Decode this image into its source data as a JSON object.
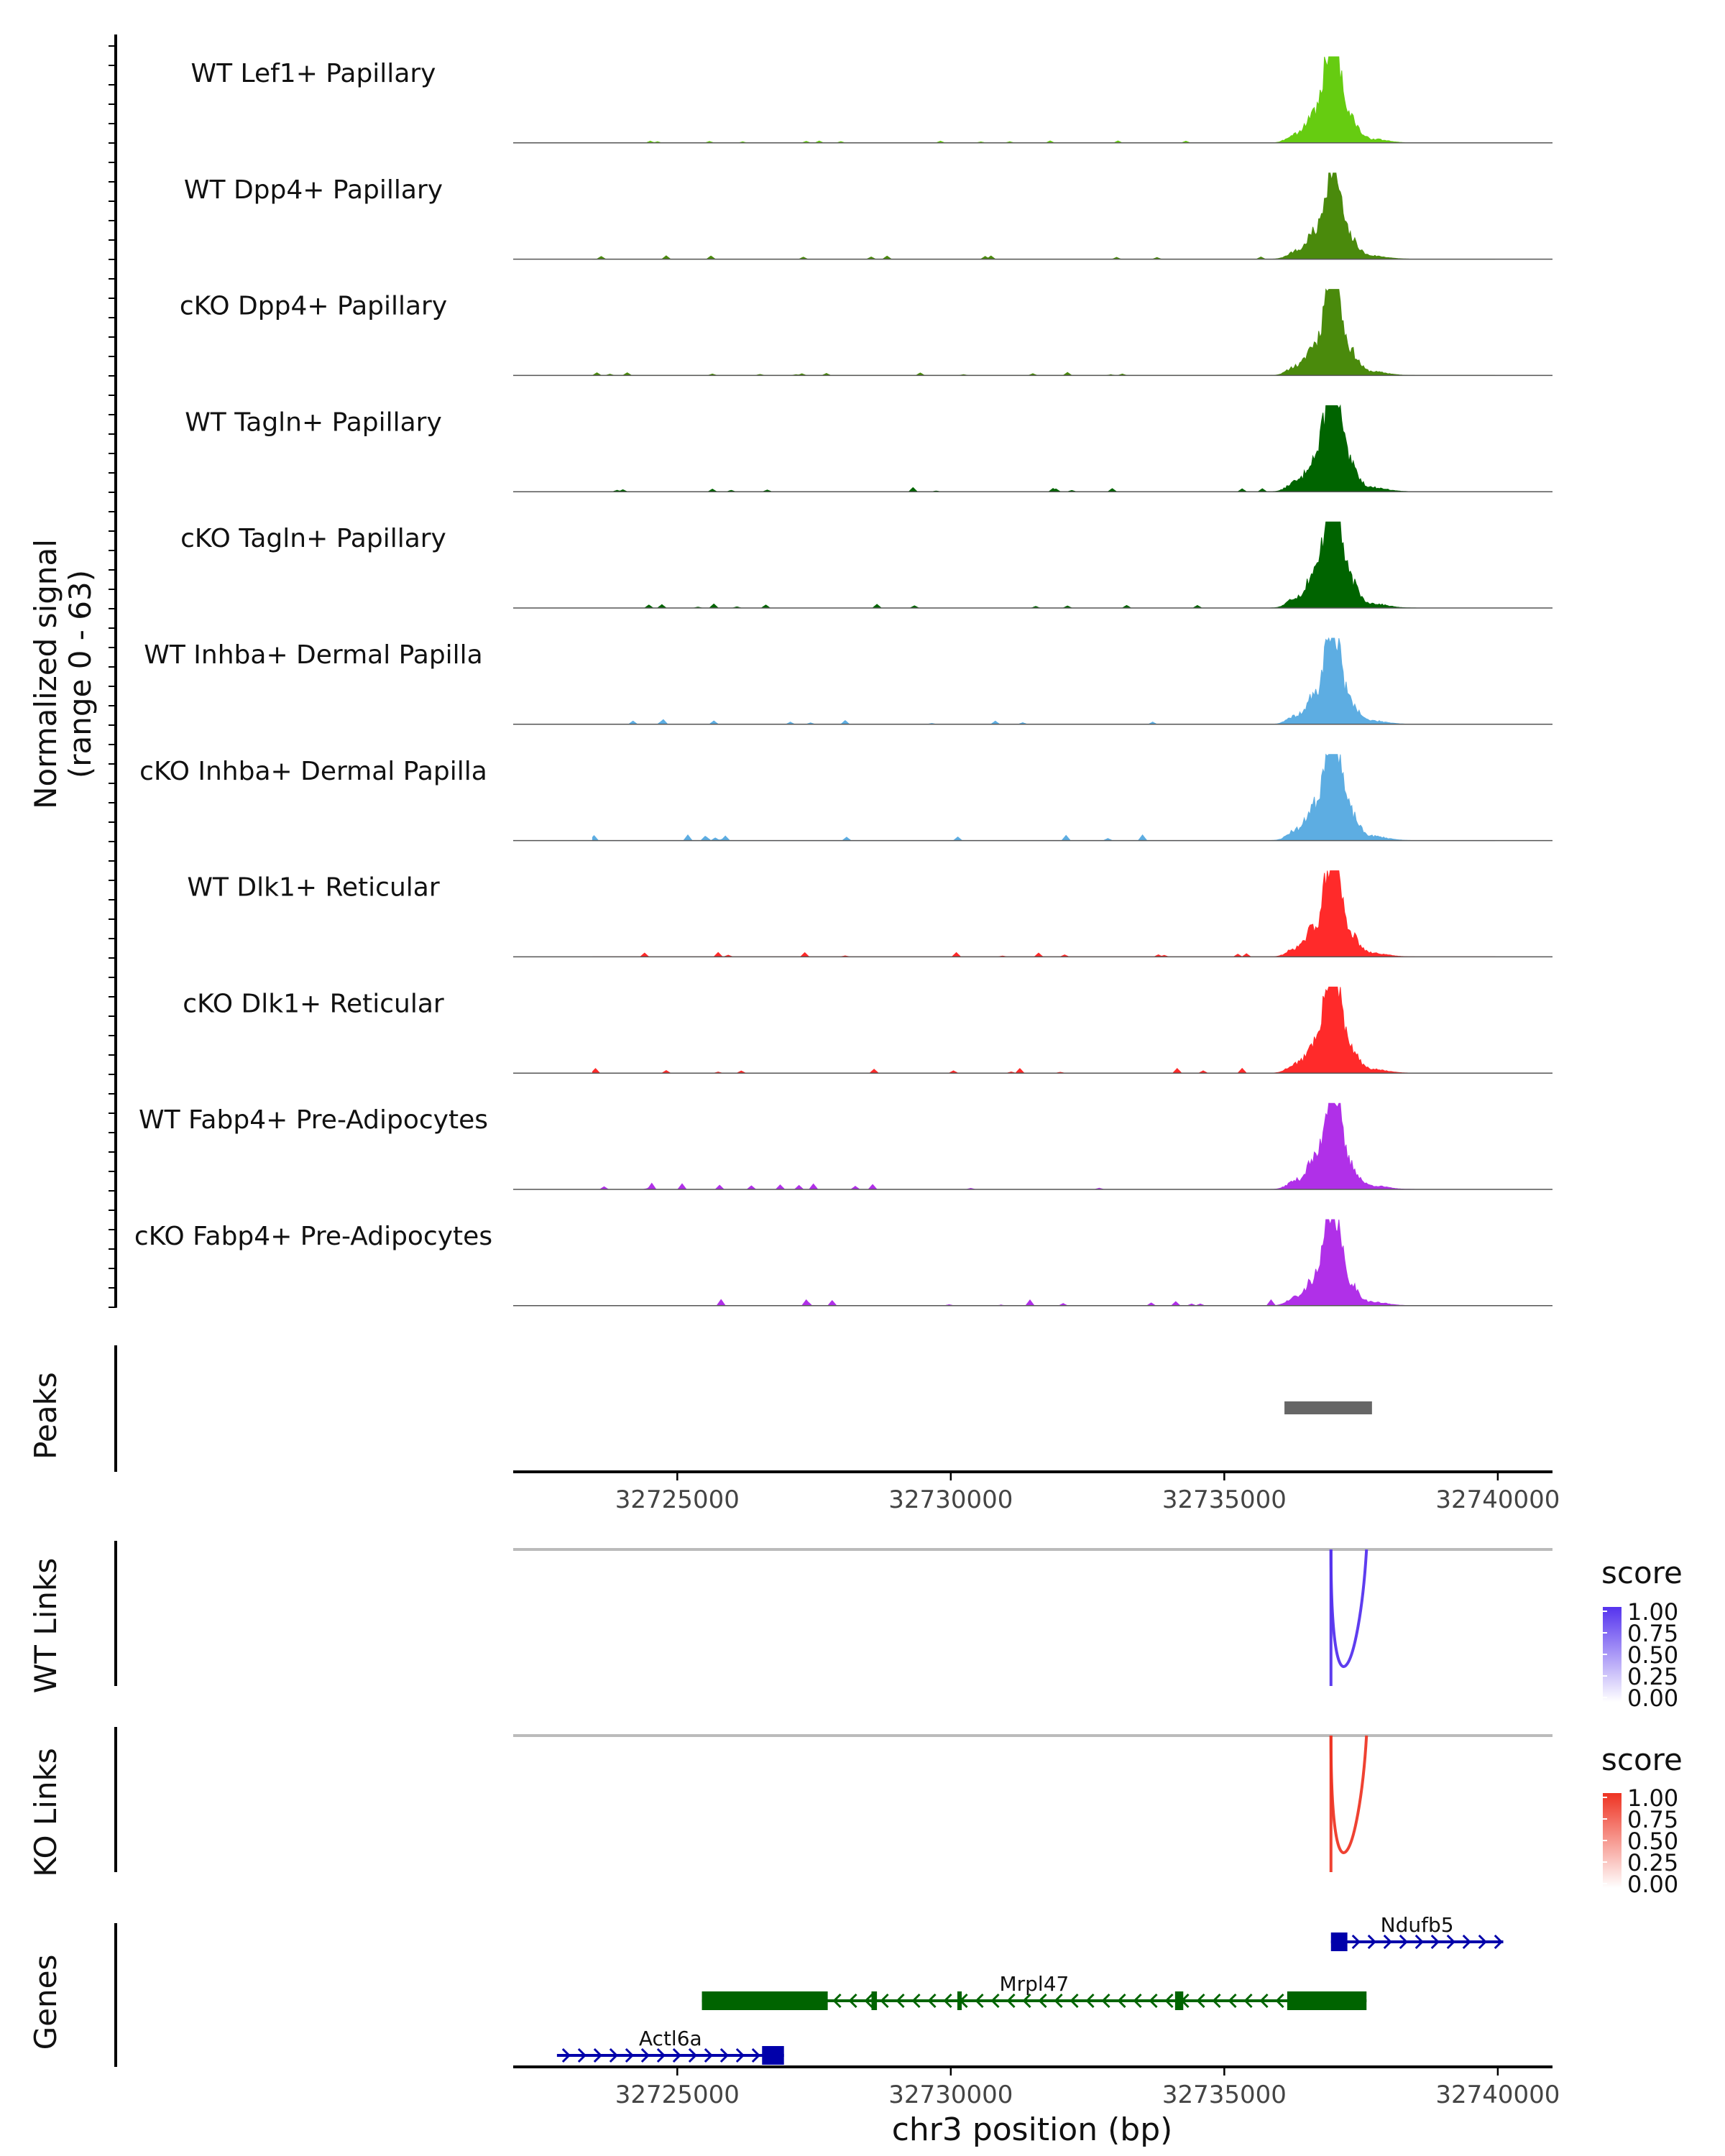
{
  "chart_data": {
    "type": "area",
    "region": "chr3",
    "xlabel": "chr3 position (bp)",
    "xlim": [
      32722000,
      32741000
    ],
    "x_ticks": [
      32725000,
      32730000,
      32735000,
      32740000
    ],
    "coverage": {
      "ylabel_line1": "Normalized signal",
      "ylabel_line2": "(range 0 - 63)",
      "ylim": [
        0,
        63
      ],
      "tracks": [
        {
          "name": "WT Lef1+ Papillary",
          "color": "#66CC11",
          "peak": 55,
          "noise": 1,
          "seed": 3
        },
        {
          "name": "WT Dpp4+ Papillary",
          "color": "#4A8A0C",
          "peak": 47,
          "noise": 2,
          "seed": 7
        },
        {
          "name": "cKO Dpp4+ Papillary",
          "color": "#4A8A0C",
          "peak": 55,
          "noise": 2,
          "seed": 11
        },
        {
          "name": "WT Tagln+ Papillary",
          "color": "#006400",
          "peak": 60,
          "noise": 3,
          "seed": 13
        },
        {
          "name": "cKO Tagln+ Papillary",
          "color": "#006400",
          "peak": 63,
          "noise": 3,
          "seed": 17
        },
        {
          "name": "WT Inhba+ Dermal Papilla",
          "color": "#5DADE2",
          "peak": 50,
          "noise": 3,
          "seed": 19
        },
        {
          "name": "cKO Inhba+ Dermal Papilla",
          "color": "#5DADE2",
          "peak": 63,
          "noise": 4,
          "seed": 23
        },
        {
          "name": "WT Dlk1+ Reticular",
          "color": "#FF2A2A",
          "peak": 53,
          "noise": 3,
          "seed": 29
        },
        {
          "name": "cKO Dlk1+ Reticular",
          "color": "#FF2A2A",
          "peak": 55,
          "noise": 3,
          "seed": 31
        },
        {
          "name": "WT Fabp4+ Pre-Adipocytes",
          "color": "#B030E8",
          "peak": 53,
          "noise": 4,
          "seed": 37
        },
        {
          "name": "cKO Fabp4+ Pre-Adipocytes",
          "color": "#B030E8",
          "peak": 50,
          "noise": 4,
          "seed": 41
        }
      ]
    },
    "peaks": {
      "label": "Peaks",
      "color": "#666666",
      "items": [
        {
          "start": 32736100,
          "end": 32737700
        }
      ]
    },
    "links": [
      {
        "label": "WT Links",
        "legend_title": "score",
        "color_high": "#5533EE",
        "legend_ticks": [
          "1.00",
          "0.75",
          "0.50",
          "0.25",
          "0.00"
        ],
        "arcs": [
          {
            "start": 32736950,
            "end": 32737600,
            "score": 0.9
          }
        ]
      },
      {
        "label": "KO Links",
        "legend_title": "score",
        "color_high": "#EE3322",
        "legend_ticks": [
          "1.00",
          "0.75",
          "0.50",
          "0.25",
          "0.00"
        ],
        "arcs": [
          {
            "start": 32736950,
            "end": 32737600,
            "score": 0.85
          }
        ]
      }
    ],
    "genes": {
      "label": "Genes",
      "items": [
        {
          "name": "Ndufb5",
          "strand": "+",
          "color": "#0000AA",
          "start": 32736950,
          "end": 32740100,
          "exons": [
            [
              32736950,
              32737250
            ]
          ],
          "row": 0
        },
        {
          "name": "Mrpl47",
          "strand": "-",
          "color": "#006400",
          "start": 32725450,
          "end": 32737600,
          "exons": [
            [
              32725450,
              32727750
            ],
            [
              32728550,
              32728650
            ],
            [
              32730120,
              32730200
            ],
            [
              32734100,
              32734250
            ],
            [
              32736150,
              32737600
            ]
          ],
          "row": 1
        },
        {
          "name": "Actl6a",
          "strand": "+",
          "color": "#0000AA",
          "start": 32722800,
          "end": 32726950,
          "exons": [
            [
              32726550,
              32726950
            ]
          ],
          "row": 2
        }
      ]
    }
  }
}
